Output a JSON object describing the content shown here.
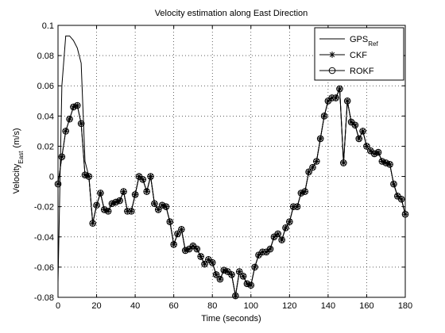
{
  "chart_data": {
    "type": "line",
    "title": "Velocity estimation along East Direction",
    "xlabel": "Time (seconds)",
    "ylabel": {
      "text": "Velocity",
      "subscript": "East",
      "suffix": "(m/s)"
    },
    "x": [
      0,
      2,
      4,
      6,
      8,
      10,
      12,
      14,
      16,
      18,
      20,
      22,
      24,
      26,
      28,
      30,
      32,
      34,
      36,
      38,
      40,
      42,
      44,
      46,
      48,
      50,
      52,
      54,
      56,
      58,
      60,
      62,
      64,
      66,
      68,
      70,
      72,
      74,
      76,
      78,
      80,
      82,
      84,
      86,
      88,
      90,
      92,
      94,
      96,
      98,
      100,
      102,
      104,
      106,
      108,
      110,
      112,
      114,
      116,
      118,
      120,
      122,
      124,
      126,
      128,
      130,
      132,
      134,
      136,
      138,
      140,
      142,
      144,
      146,
      148,
      150,
      152,
      154,
      156,
      158,
      160,
      162,
      164,
      166,
      168,
      170,
      172,
      174,
      176,
      178,
      180
    ],
    "series": [
      {
        "name": "GPS",
        "name_subscript": "Ref",
        "color": "#000000",
        "marker": "none",
        "values": [
          -0.07,
          0.06,
          0.093,
          0.093,
          0.09,
          0.085,
          0.075,
          0.01,
          0.0,
          -0.031,
          -0.019,
          -0.011,
          -0.022,
          -0.023,
          -0.018,
          -0.017,
          -0.016,
          -0.01,
          -0.023,
          -0.023,
          -0.012,
          0.0,
          -0.002,
          -0.01,
          0.0,
          -0.018,
          -0.022,
          -0.019,
          -0.02,
          -0.03,
          -0.045,
          -0.038,
          -0.035,
          -0.049,
          -0.048,
          -0.046,
          -0.048,
          -0.053,
          -0.058,
          -0.055,
          -0.057,
          -0.065,
          -0.068,
          -0.062,
          -0.063,
          -0.065,
          -0.079,
          -0.063,
          -0.066,
          -0.071,
          -0.072,
          -0.06,
          -0.052,
          -0.05,
          -0.05,
          -0.048,
          -0.04,
          -0.038,
          -0.042,
          -0.034,
          -0.03,
          -0.02,
          -0.02,
          -0.011,
          -0.01,
          0.003,
          0.006,
          0.01,
          0.025,
          0.04,
          0.05,
          0.052,
          0.052,
          0.058,
          0.009,
          0.05,
          0.036,
          0.034,
          0.025,
          0.03,
          0.02,
          0.017,
          0.015,
          0.016,
          0.01,
          0.009,
          0.008,
          -0.005,
          -0.013,
          -0.015,
          -0.025
        ]
      },
      {
        "name": "CKF",
        "color": "#000000",
        "marker": "star",
        "values": [
          -0.005,
          0.013,
          0.03,
          0.038,
          0.046,
          0.047,
          0.035,
          0.001,
          0.0,
          -0.031,
          -0.019,
          -0.011,
          -0.022,
          -0.023,
          -0.018,
          -0.017,
          -0.016,
          -0.01,
          -0.023,
          -0.023,
          -0.012,
          0.0,
          -0.002,
          -0.01,
          0.0,
          -0.018,
          -0.022,
          -0.019,
          -0.02,
          -0.03,
          -0.045,
          -0.038,
          -0.035,
          -0.049,
          -0.048,
          -0.046,
          -0.048,
          -0.053,
          -0.058,
          -0.055,
          -0.057,
          -0.065,
          -0.068,
          -0.062,
          -0.063,
          -0.065,
          -0.079,
          -0.063,
          -0.066,
          -0.071,
          -0.072,
          -0.06,
          -0.052,
          -0.05,
          -0.05,
          -0.048,
          -0.04,
          -0.038,
          -0.042,
          -0.034,
          -0.03,
          -0.02,
          -0.02,
          -0.011,
          -0.01,
          0.003,
          0.006,
          0.01,
          0.025,
          0.04,
          0.05,
          0.052,
          0.052,
          0.058,
          0.009,
          0.05,
          0.036,
          0.034,
          0.025,
          0.03,
          0.02,
          0.017,
          0.015,
          0.016,
          0.01,
          0.009,
          0.008,
          -0.005,
          -0.013,
          -0.015,
          -0.025
        ]
      },
      {
        "name": "ROKF",
        "color": "#000000",
        "marker": "circle",
        "values": [
          -0.005,
          0.013,
          0.03,
          0.038,
          0.046,
          0.047,
          0.035,
          0.001,
          0.0,
          -0.031,
          -0.019,
          -0.011,
          -0.022,
          -0.023,
          -0.018,
          -0.017,
          -0.016,
          -0.01,
          -0.023,
          -0.023,
          -0.012,
          0.0,
          -0.002,
          -0.01,
          0.0,
          -0.018,
          -0.022,
          -0.019,
          -0.02,
          -0.03,
          -0.045,
          -0.038,
          -0.035,
          -0.049,
          -0.048,
          -0.046,
          -0.048,
          -0.053,
          -0.058,
          -0.055,
          -0.057,
          -0.065,
          -0.068,
          -0.062,
          -0.063,
          -0.065,
          -0.079,
          -0.063,
          -0.066,
          -0.071,
          -0.072,
          -0.06,
          -0.052,
          -0.05,
          -0.05,
          -0.048,
          -0.04,
          -0.038,
          -0.042,
          -0.034,
          -0.03,
          -0.02,
          -0.02,
          -0.011,
          -0.01,
          0.003,
          0.006,
          0.01,
          0.025,
          0.04,
          0.05,
          0.052,
          0.052,
          0.058,
          0.009,
          0.05,
          0.036,
          0.034,
          0.025,
          0.03,
          0.02,
          0.017,
          0.015,
          0.016,
          0.01,
          0.009,
          0.008,
          -0.005,
          -0.013,
          -0.015,
          -0.025
        ]
      }
    ],
    "xlim": [
      0,
      180
    ],
    "xticks": [
      0,
      20,
      40,
      60,
      80,
      100,
      120,
      140,
      160,
      180
    ],
    "ylim": [
      -0.08,
      0.1
    ],
    "yticks": [
      -0.08,
      -0.06,
      -0.04,
      -0.02,
      0,
      0.02,
      0.04,
      0.06,
      0.08,
      0.1
    ],
    "grid": true,
    "legend": "northeast"
  }
}
